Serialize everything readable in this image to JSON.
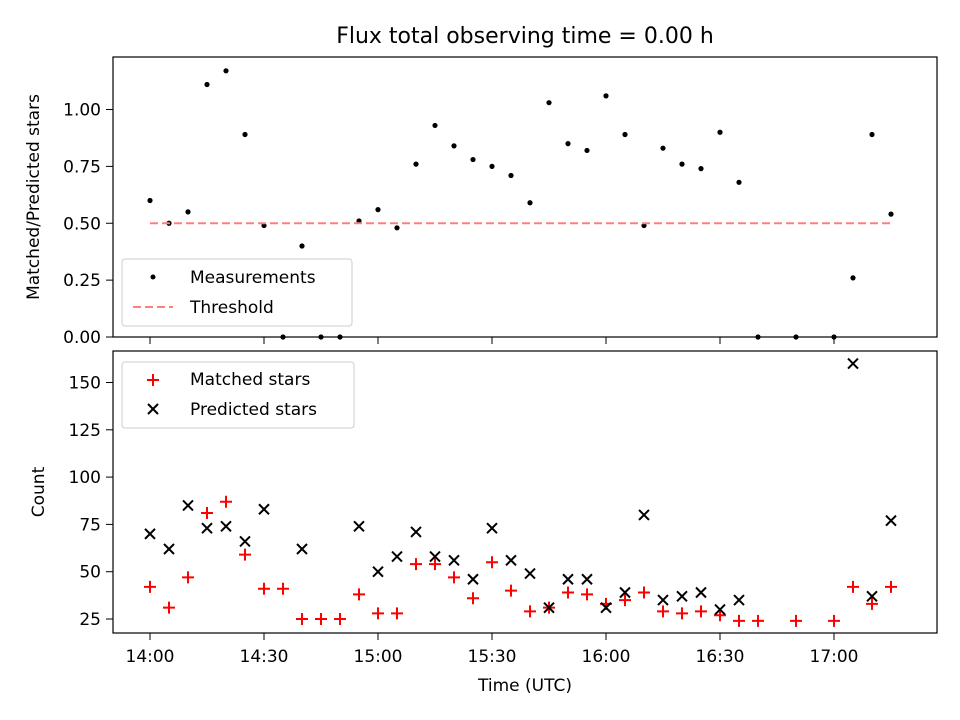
{
  "chart_data": [
    {
      "type": "scatter",
      "title": "Flux total observing time = 0.00 h",
      "ylabel": "Matched/Predicted stars",
      "ylim": [
        0,
        1.23
      ],
      "yticks": [
        "0.00",
        "0.25",
        "0.50",
        "0.75",
        "1.00"
      ],
      "legend_position": "lower-left",
      "grid": false,
      "series": [
        {
          "name": "Measurements",
          "marker": "dot",
          "color": "#000000",
          "x": [
            "14:00",
            "14:05",
            "14:10",
            "14:15",
            "14:20",
            "14:25",
            "14:30",
            "14:35",
            "14:40",
            "14:45",
            "14:50",
            "14:55",
            "15:00",
            "15:05",
            "15:10",
            "15:15",
            "15:20",
            "15:25",
            "15:30",
            "15:35",
            "15:40",
            "15:45",
            "15:50",
            "15:55",
            "16:00",
            "16:05",
            "16:10",
            "16:15",
            "16:20",
            "16:25",
            "16:30",
            "16:35",
            "16:40",
            "16:50",
            "17:00",
            "17:05",
            "17:10",
            "17:15"
          ],
          "y": [
            0.6,
            0.5,
            0.55,
            1.11,
            1.17,
            0.89,
            0.49,
            0.0,
            0.4,
            0.0,
            0.0,
            0.51,
            0.56,
            0.48,
            0.76,
            0.93,
            0.84,
            0.78,
            0.75,
            0.71,
            0.59,
            1.03,
            0.85,
            0.82,
            1.06,
            0.89,
            0.49,
            0.83,
            0.76,
            0.74,
            0.9,
            0.68,
            0.0,
            0.0,
            0.0,
            0.26,
            0.89,
            0.54
          ]
        },
        {
          "name": "Threshold",
          "marker": "dashed-line",
          "color": "#ff7f7f",
          "x": [
            "14:00",
            "17:15"
          ],
          "y": [
            0.5,
            0.5
          ]
        }
      ]
    },
    {
      "type": "scatter",
      "xlabel": "Time (UTC)",
      "ylabel": "Count",
      "ylim": [
        18,
        168
      ],
      "yticks": [
        "25",
        "50",
        "75",
        "100",
        "125",
        "150"
      ],
      "xticks": [
        "14:00",
        "14:30",
        "15:00",
        "15:30",
        "16:00",
        "16:30",
        "17:00"
      ],
      "legend_position": "top-left",
      "grid": false,
      "series": [
        {
          "name": "Matched stars",
          "marker": "plus",
          "color": "#ff0000",
          "x": [
            "14:00",
            "14:05",
            "14:10",
            "14:15",
            "14:20",
            "14:25",
            "14:30",
            "14:35",
            "14:40",
            "14:45",
            "14:50",
            "14:55",
            "15:00",
            "15:05",
            "15:10",
            "15:15",
            "15:20",
            "15:25",
            "15:30",
            "15:35",
            "15:40",
            "15:45",
            "15:50",
            "15:55",
            "16:00",
            "16:05",
            "16:10",
            "16:15",
            "16:20",
            "16:25",
            "16:30",
            "16:35",
            "16:40",
            "16:50",
            "17:00",
            "17:05",
            "17:10",
            "17:15"
          ],
          "y": [
            42,
            31,
            47,
            81,
            87,
            59,
            41,
            41,
            25,
            25,
            25,
            38,
            28,
            28,
            54,
            54,
            47,
            36,
            55,
            40,
            29,
            31,
            39,
            38,
            33,
            35,
            39,
            29,
            28,
            29,
            27,
            24,
            24,
            24,
            24,
            42,
            33,
            42
          ]
        },
        {
          "name": "Predicted stars",
          "marker": "x",
          "color": "#000000",
          "x": [
            "14:00",
            "14:05",
            "14:10",
            "14:15",
            "14:20",
            "14:25",
            "14:30",
            "14:40",
            "14:55",
            "15:00",
            "15:05",
            "15:10",
            "15:15",
            "15:20",
            "15:25",
            "15:30",
            "15:35",
            "15:40",
            "15:45",
            "15:50",
            "15:55",
            "16:00",
            "16:05",
            "16:10",
            "16:15",
            "16:20",
            "16:25",
            "16:30",
            "16:35",
            "17:05",
            "17:10",
            "17:15"
          ],
          "y": [
            70,
            62,
            85,
            73,
            74,
            66,
            83,
            62,
            74,
            50,
            58,
            71,
            58,
            56,
            46,
            73,
            56,
            49,
            31,
            46,
            46,
            31,
            39,
            80,
            35,
            37,
            39,
            30,
            35,
            160,
            37,
            77
          ]
        }
      ]
    }
  ]
}
